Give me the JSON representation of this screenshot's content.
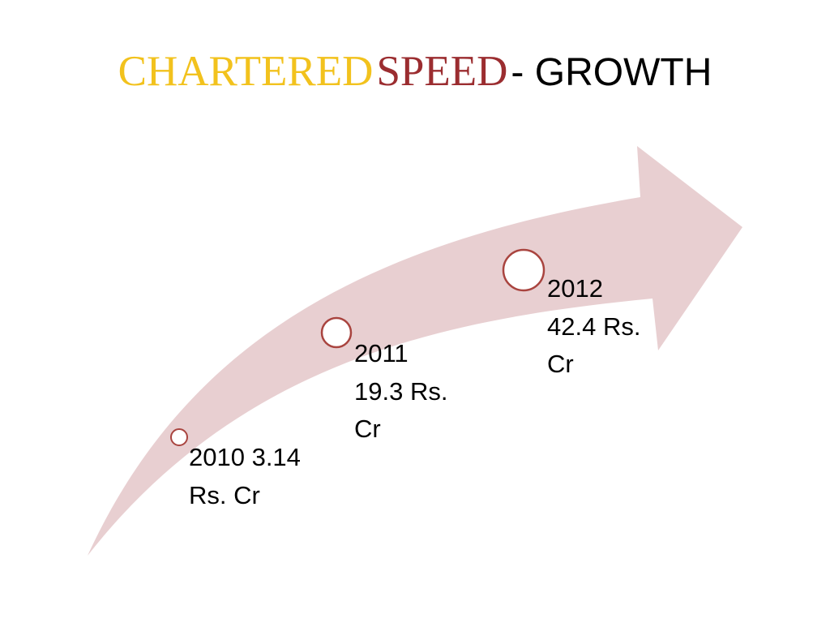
{
  "title": {
    "part1": "CHARTERED",
    "part2": "SPEED",
    "part3": "- GROWTH"
  },
  "colors": {
    "title_part1": "#f2c21d",
    "title_part2": "#9b2d30",
    "title_part3": "#000000",
    "arrow_fill": "#e8cfd1",
    "circle_stroke": "#a9443f",
    "circle_fill": "#ffffff"
  },
  "milestones": [
    {
      "line1": "2010 3.14",
      "line2": "Rs. Cr",
      "line3": ""
    },
    {
      "line1": "2011",
      "line2": "19.3 Rs.",
      "line3": "Cr"
    },
    {
      "line1": "2012",
      "line2": "42.4 Rs.",
      "line3": "Cr"
    }
  ]
}
